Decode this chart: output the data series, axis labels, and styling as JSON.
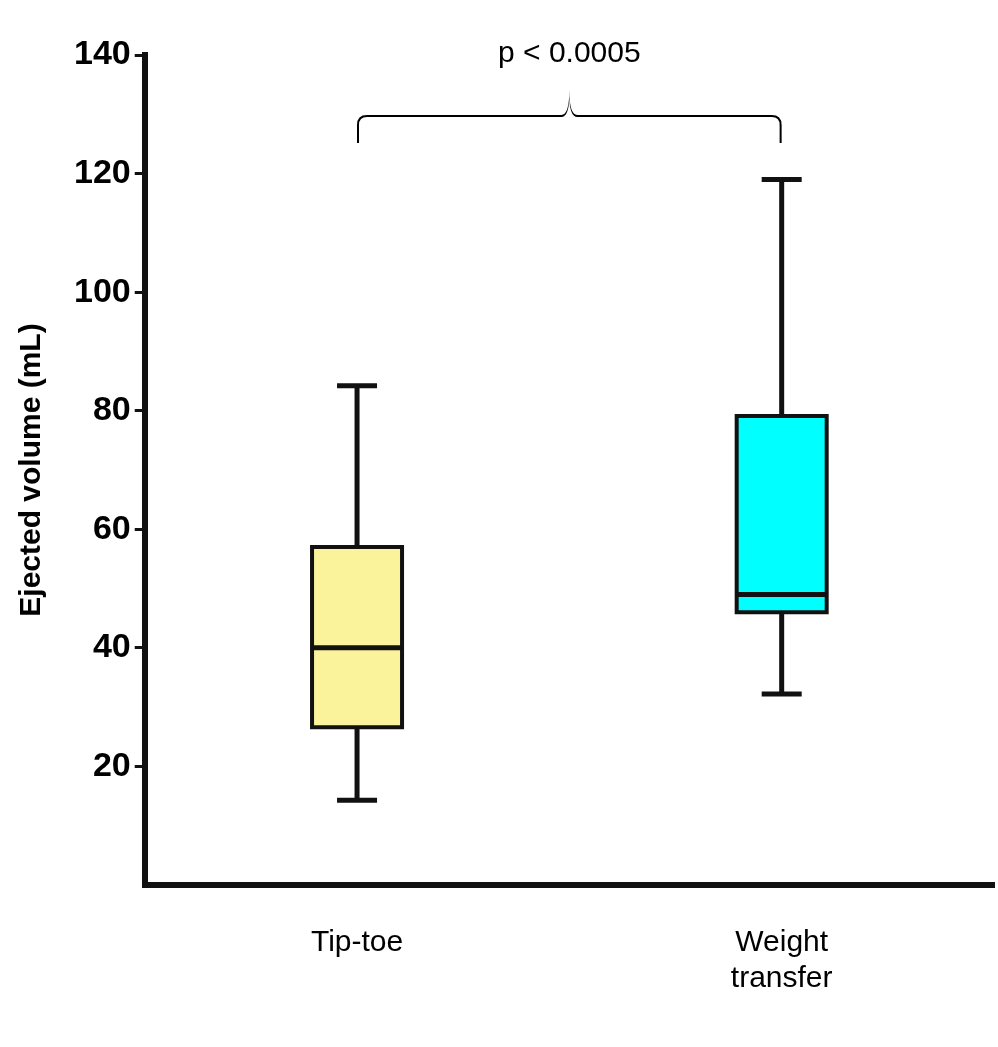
{
  "chart_data": {
    "type": "box",
    "ylabel": "Ejected volume (mL)",
    "categories": [
      "Tip-toe",
      "Weight transfer"
    ],
    "boxes": [
      {
        "low": 14.3,
        "q1": 26.6,
        "median": 40,
        "q3": 57,
        "high": 84.2
      },
      {
        "low": 32.2,
        "q1": 46,
        "median": 49,
        "q3": 79.1,
        "high": 119
      }
    ],
    "colors": [
      "#fbf39c",
      "#00ffff"
    ],
    "ylim": [
      0,
      140
    ],
    "yticks": [
      20,
      40,
      60,
      80,
      100,
      120,
      140
    ],
    "grid": false,
    "legend": false,
    "annotations": [
      "p < 0.0005"
    ]
  }
}
